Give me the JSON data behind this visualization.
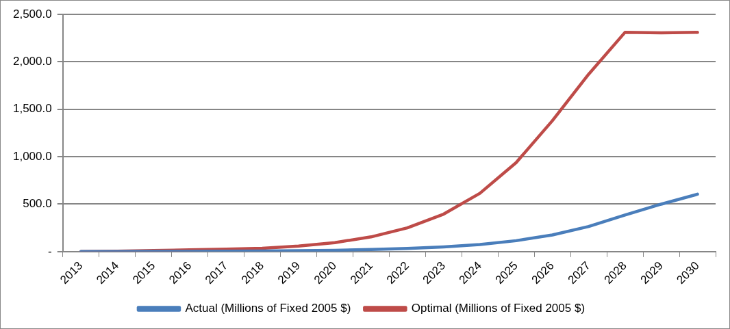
{
  "chart_data": {
    "type": "line",
    "categories": [
      "2013",
      "2014",
      "2015",
      "2016",
      "2017",
      "2018",
      "2019",
      "2020",
      "2021",
      "2022",
      "2023",
      "2024",
      "2025",
      "2026",
      "2027",
      "2028",
      "2029",
      "2030"
    ],
    "series": [
      {
        "name": "Actual (Millions of Fixed 2005 $)",
        "color": "#4a7ebb",
        "values": [
          0,
          1,
          2,
          3,
          4,
          6,
          9,
          14,
          22,
          33,
          50,
          75,
          115,
          175,
          265,
          385,
          500,
          605
        ]
      },
      {
        "name": "Optimal (Millions of Fixed 2005 $)",
        "color": "#be4b48",
        "values": [
          0,
          5,
          12,
          18,
          25,
          35,
          58,
          95,
          155,
          250,
          395,
          614,
          938,
          1380,
          1870,
          2310,
          2305,
          2310
        ]
      }
    ],
    "ylim": [
      0,
      2500
    ],
    "yticks": [
      {
        "value": 0,
        "label": "-"
      },
      {
        "value": 500,
        "label": "500.0"
      },
      {
        "value": 1000,
        "label": "1,000.0"
      },
      {
        "value": 1500,
        "label": "1,500.0"
      },
      {
        "value": 2000,
        "label": "2,000.0"
      },
      {
        "value": 2500,
        "label": "2,500.0"
      }
    ],
    "grid": "y",
    "legend": "bottom",
    "marker": "none",
    "line_style": "solid"
  }
}
